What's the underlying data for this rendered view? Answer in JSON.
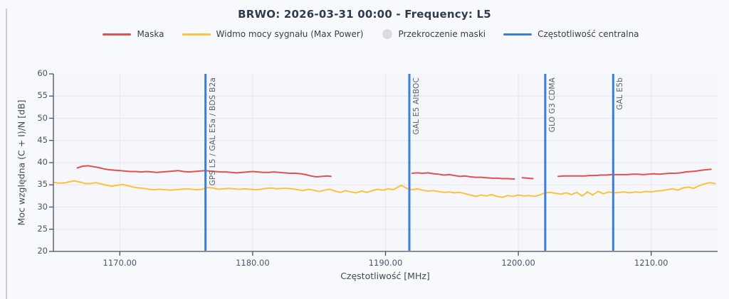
{
  "page": {
    "background": "#f8f9fc"
  },
  "chart": {
    "title": "BRWO: 2026-03-31 00:00 - Frequency: L5",
    "x_title": "Częstotliwość [MHz]",
    "y_title": "Moc względna (C + I)/N [dB]"
  },
  "legend": {
    "items": [
      {
        "label": "Maska",
        "marker": "line",
        "color": "#e3504f"
      },
      {
        "label": "Widmo mocy sygnału (Max Power)",
        "marker": "line",
        "color": "#fcc23f"
      },
      {
        "label": "Przekroczenie maski",
        "marker": "circle",
        "color": "#d8dbe0"
      },
      {
        "label": "Częstotliwość centralna",
        "marker": "line",
        "color": "#3b7ddd"
      }
    ]
  },
  "colors": {
    "mask": "#e3504f",
    "spectrum": "#fcc23f",
    "center_line": "#3b7ddd",
    "exceedance": "#d8dbe0",
    "grid": "#e4e7ee",
    "axis": "#47505e",
    "plot_bg": "#f6f7fa"
  },
  "chart_data": {
    "type": "line",
    "title": "BRWO: 2026-03-31 00:00 - Frequency: L5",
    "xlabel": "Częstotliwość [MHz]",
    "ylabel": "Moc względna (C + I)/N [dB]",
    "xlim": [
      1165,
      1215
    ],
    "ylim": [
      20,
      60
    ],
    "grid": true,
    "legend_position": "top",
    "x_ticks": [
      {
        "value": 1170,
        "label": "1170.00"
      },
      {
        "value": 1180,
        "label": "1180.00"
      },
      {
        "value": 1190,
        "label": "1190.00"
      },
      {
        "value": 1200,
        "label": "1200.00"
      },
      {
        "value": 1210,
        "label": "1210.00"
      }
    ],
    "y_ticks": [
      {
        "value": 20,
        "label": "20"
      },
      {
        "value": 25,
        "label": "25"
      },
      {
        "value": 30,
        "label": "30"
      },
      {
        "value": 35,
        "label": "35"
      },
      {
        "value": 40,
        "label": "40"
      },
      {
        "value": 45,
        "label": "45"
      },
      {
        "value": 50,
        "label": "50"
      },
      {
        "value": 55,
        "label": "55"
      },
      {
        "value": 60,
        "label": "60"
      }
    ],
    "center_frequencies": [
      {
        "mhz": 1176.45,
        "label": "GPS L5 / GAL E5a / BDS B2a"
      },
      {
        "mhz": 1191.795,
        "label": "GAL E5 AltBOC"
      },
      {
        "mhz": 1202.025,
        "label": "GLO G3 CDMA"
      },
      {
        "mhz": 1207.14,
        "label": "GAL E5b"
      }
    ],
    "series": [
      {
        "name": "Maska",
        "color": "#e3504f",
        "width": 2,
        "segments": [
          [
            [
              1166.8,
              38.8
            ],
            [
              1167.2,
              39.2
            ],
            [
              1167.6,
              39.3
            ],
            [
              1168,
              39.1
            ],
            [
              1168.4,
              38.9
            ],
            [
              1168.8,
              38.6
            ],
            [
              1169.2,
              38.4
            ],
            [
              1169.6,
              38.3
            ],
            [
              1170,
              38.2
            ],
            [
              1170.4,
              38.1
            ],
            [
              1170.8,
              38
            ],
            [
              1171.2,
              38
            ],
            [
              1171.6,
              37.9
            ],
            [
              1172,
              38
            ],
            [
              1172.4,
              37.9
            ],
            [
              1172.8,
              37.8
            ],
            [
              1173.2,
              37.9
            ],
            [
              1173.6,
              38
            ],
            [
              1174,
              38.1
            ],
            [
              1174.4,
              38.2
            ],
            [
              1174.8,
              38
            ],
            [
              1175.2,
              37.9
            ],
            [
              1175.6,
              38
            ],
            [
              1176,
              38.1
            ],
            [
              1176.4,
              38.2
            ],
            [
              1176.8,
              38.1
            ],
            [
              1177.2,
              38
            ],
            [
              1177.6,
              37.9
            ],
            [
              1178,
              37.9
            ],
            [
              1178.4,
              37.8
            ],
            [
              1178.8,
              37.7
            ],
            [
              1179.2,
              37.8
            ],
            [
              1179.6,
              37.9
            ],
            [
              1180,
              38
            ],
            [
              1180.4,
              37.9
            ],
            [
              1180.8,
              37.8
            ],
            [
              1181.2,
              37.8
            ],
            [
              1181.6,
              37.9
            ],
            [
              1182,
              37.8
            ],
            [
              1182.4,
              37.7
            ],
            [
              1182.8,
              37.6
            ],
            [
              1183.2,
              37.6
            ],
            [
              1183.6,
              37.5
            ],
            [
              1184,
              37.3
            ],
            [
              1184.4,
              37
            ],
            [
              1184.8,
              36.8
            ],
            [
              1185.2,
              36.9
            ],
            [
              1185.6,
              37
            ],
            [
              1185.9,
              36.9
            ]
          ],
          [
            [
              1192,
              37.6
            ],
            [
              1192.4,
              37.7
            ],
            [
              1192.8,
              37.6
            ],
            [
              1193.2,
              37.7
            ],
            [
              1193.6,
              37.5
            ],
            [
              1194,
              37.4
            ],
            [
              1194.4,
              37.2
            ],
            [
              1194.8,
              37.3
            ],
            [
              1195.2,
              37.1
            ],
            [
              1195.6,
              36.9
            ],
            [
              1196,
              37
            ],
            [
              1196.4,
              36.8
            ],
            [
              1196.8,
              36.7
            ],
            [
              1197.2,
              36.7
            ],
            [
              1197.6,
              36.6
            ],
            [
              1198,
              36.5
            ],
            [
              1198.4,
              36.5
            ],
            [
              1198.8,
              36.4
            ],
            [
              1199.2,
              36.4
            ],
            [
              1199.7,
              36.3
            ]
          ],
          [
            [
              1200.3,
              36.6
            ],
            [
              1200.7,
              36.5
            ],
            [
              1201.1,
              36.4
            ]
          ],
          [
            [
              1203,
              36.9
            ],
            [
              1203.4,
              37
            ],
            [
              1203.8,
              37
            ],
            [
              1204.2,
              37
            ],
            [
              1204.6,
              37
            ],
            [
              1205,
              37
            ],
            [
              1205.4,
              37.1
            ],
            [
              1205.8,
              37.1
            ],
            [
              1206.2,
              37.2
            ],
            [
              1206.6,
              37.2
            ],
            [
              1207,
              37.3
            ],
            [
              1207.4,
              37.3
            ],
            [
              1207.8,
              37.3
            ],
            [
              1208.2,
              37.3
            ],
            [
              1208.6,
              37.4
            ],
            [
              1209,
              37.4
            ],
            [
              1209.4,
              37.3
            ],
            [
              1209.8,
              37.4
            ],
            [
              1210.2,
              37.5
            ],
            [
              1210.6,
              37.4
            ],
            [
              1211,
              37.5
            ],
            [
              1211.4,
              37.6
            ],
            [
              1211.8,
              37.6
            ],
            [
              1212.2,
              37.7
            ],
            [
              1212.6,
              37.9
            ],
            [
              1213,
              38
            ],
            [
              1213.4,
              38.1
            ],
            [
              1213.8,
              38.3
            ],
            [
              1214.5,
              38.5
            ]
          ]
        ]
      },
      {
        "name": "Widmo mocy sygnału (Max Power)",
        "color": "#fcc23f",
        "width": 2,
        "segments": [
          [
            [
              1165,
              35.6
            ],
            [
              1165.4,
              35.4
            ],
            [
              1165.8,
              35.4
            ],
            [
              1166.2,
              35.7
            ],
            [
              1166.6,
              35.9
            ],
            [
              1167,
              35.6
            ],
            [
              1167.4,
              35.3
            ],
            [
              1167.8,
              35.3
            ],
            [
              1168.2,
              35.5
            ],
            [
              1168.6,
              35.2
            ],
            [
              1169,
              34.9
            ],
            [
              1169.4,
              34.7
            ],
            [
              1169.8,
              34.9
            ],
            [
              1170.2,
              35.1
            ],
            [
              1170.6,
              34.8
            ],
            [
              1171,
              34.5
            ],
            [
              1171.4,
              34.3
            ],
            [
              1171.8,
              34.2
            ],
            [
              1172.2,
              34
            ],
            [
              1172.6,
              33.9
            ],
            [
              1173,
              34
            ],
            [
              1173.4,
              33.9
            ],
            [
              1173.8,
              33.8
            ],
            [
              1174.2,
              33.9
            ],
            [
              1174.6,
              34
            ],
            [
              1175,
              34.1
            ],
            [
              1175.4,
              34
            ],
            [
              1175.8,
              33.9
            ],
            [
              1176.2,
              34
            ],
            [
              1176.6,
              34.4
            ],
            [
              1177,
              34.3
            ],
            [
              1177.4,
              34
            ],
            [
              1177.8,
              34.1
            ],
            [
              1178.2,
              34.2
            ],
            [
              1178.6,
              34.1
            ],
            [
              1179,
              34
            ],
            [
              1179.4,
              34.1
            ],
            [
              1179.8,
              34
            ],
            [
              1180.2,
              33.9
            ],
            [
              1180.6,
              34
            ],
            [
              1181,
              34.2
            ],
            [
              1181.4,
              34.3
            ],
            [
              1181.8,
              34.1
            ],
            [
              1182.2,
              34.2
            ],
            [
              1182.6,
              34.2
            ],
            [
              1183,
              34.1
            ],
            [
              1183.4,
              33.9
            ],
            [
              1183.8,
              33.7
            ],
            [
              1184.2,
              34
            ],
            [
              1184.6,
              33.8
            ],
            [
              1185,
              33.5
            ],
            [
              1185.4,
              33.8
            ],
            [
              1185.8,
              34
            ],
            [
              1186.2,
              33.6
            ],
            [
              1186.6,
              33.3
            ],
            [
              1187,
              33.7
            ],
            [
              1187.4,
              33.4
            ],
            [
              1187.8,
              33.2
            ],
            [
              1188.2,
              33.6
            ],
            [
              1188.6,
              33.3
            ],
            [
              1189,
              33.7
            ],
            [
              1189.4,
              34
            ],
            [
              1189.8,
              33.8
            ],
            [
              1190.2,
              34.1
            ],
            [
              1190.6,
              33.9
            ],
            [
              1191,
              34.6
            ],
            [
              1191.2,
              34.9
            ],
            [
              1191.6,
              34.2
            ],
            [
              1192,
              33.9
            ],
            [
              1192.4,
              34.1
            ],
            [
              1192.8,
              33.8
            ],
            [
              1193.2,
              33.6
            ],
            [
              1193.6,
              33.7
            ],
            [
              1194,
              33.5
            ],
            [
              1194.4,
              33.3
            ],
            [
              1194.8,
              33.4
            ],
            [
              1195.2,
              33.2
            ],
            [
              1195.6,
              33.3
            ],
            [
              1196,
              33
            ],
            [
              1196.4,
              32.7
            ],
            [
              1196.8,
              32.4
            ],
            [
              1197.2,
              32.7
            ],
            [
              1197.6,
              32.5
            ],
            [
              1198,
              32.8
            ],
            [
              1198.4,
              32.4
            ],
            [
              1198.8,
              32.2
            ],
            [
              1199.2,
              32.6
            ],
            [
              1199.6,
              32.4
            ],
            [
              1200,
              32.7
            ],
            [
              1200.4,
              32.5
            ],
            [
              1200.8,
              32.6
            ],
            [
              1201.2,
              32.4
            ],
            [
              1201.6,
              32.7
            ],
            [
              1202,
              33.2
            ],
            [
              1202.4,
              33.3
            ],
            [
              1202.8,
              33.1
            ],
            [
              1203.2,
              32.9
            ],
            [
              1203.6,
              33.2
            ],
            [
              1204,
              32.8
            ],
            [
              1204.4,
              33.3
            ],
            [
              1204.8,
              32.5
            ],
            [
              1205.2,
              33.4
            ],
            [
              1205.6,
              32.7
            ],
            [
              1206,
              33.5
            ],
            [
              1206.4,
              33
            ],
            [
              1206.8,
              33.4
            ],
            [
              1207.2,
              33.2
            ],
            [
              1207.6,
              33.3
            ],
            [
              1208,
              33.4
            ],
            [
              1208.4,
              33.2
            ],
            [
              1208.8,
              33.4
            ],
            [
              1209.2,
              33.3
            ],
            [
              1209.6,
              33.5
            ],
            [
              1210,
              33.4
            ],
            [
              1210.4,
              33.6
            ],
            [
              1210.8,
              33.7
            ],
            [
              1211.2,
              33.9
            ],
            [
              1211.6,
              34.1
            ],
            [
              1212,
              33.8
            ],
            [
              1212.4,
              34.3
            ],
            [
              1212.8,
              34.5
            ],
            [
              1213.2,
              34.2
            ],
            [
              1213.6,
              34.8
            ],
            [
              1214,
              35.2
            ],
            [
              1214.4,
              35.5
            ],
            [
              1214.8,
              35.3
            ]
          ]
        ]
      },
      {
        "name": "Przekroczenie maski",
        "color": "#d8dbe0",
        "marker": "circle",
        "points": []
      }
    ]
  }
}
